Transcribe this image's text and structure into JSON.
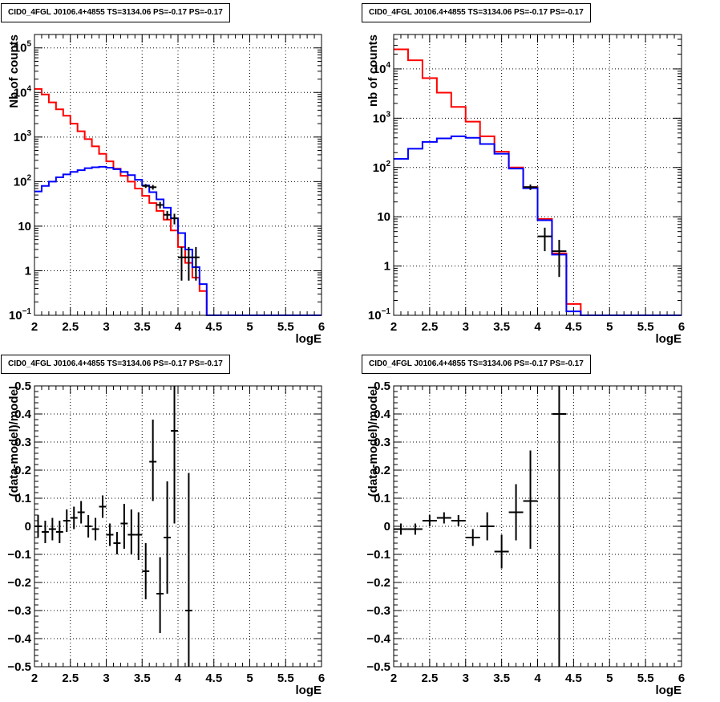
{
  "chart_data": [
    {
      "type": "line",
      "title": "CID0_4FGL J0106.4+4855 TS=3134.06 PS=-0.17 PS=-0.17",
      "xlabel": "logE",
      "ylabel": "Nb of counts",
      "xlim": [
        2,
        6
      ],
      "ylim": [
        0.1,
        200000
      ],
      "yscale": "log",
      "grid": true,
      "xticks": [
        "2",
        "2.5",
        "3",
        "3.5",
        "4",
        "4.5",
        "5",
        "5.5",
        "6"
      ],
      "yticks": [
        {
          "v": 0.1,
          "label": "10",
          "exp": "−1"
        },
        {
          "v": 1,
          "label": "1",
          "exp": ""
        },
        {
          "v": 10,
          "label": "10",
          "exp": ""
        },
        {
          "v": 100,
          "label": "10",
          "exp": "2"
        },
        {
          "v": 1000,
          "label": "10",
          "exp": "3"
        },
        {
          "v": 10000,
          "label": "10",
          "exp": "4"
        },
        {
          "v": 100000,
          "label": "10",
          "exp": "5"
        }
      ],
      "bin_edges": [
        2.0,
        2.1,
        2.2,
        2.3,
        2.4,
        2.5,
        2.6,
        2.7,
        2.8,
        2.9,
        3.0,
        3.1,
        3.2,
        3.3,
        3.4,
        3.5,
        3.6,
        3.7,
        3.8,
        3.9,
        4.0,
        4.1,
        4.2,
        4.3,
        4.4,
        4.5,
        4.6,
        4.7,
        4.8,
        4.9,
        5.0,
        5.1,
        5.2,
        5.3,
        5.4,
        5.5,
        5.6,
        5.7,
        5.8,
        5.9,
        6.0
      ],
      "series": [
        {
          "color": "#ff0000",
          "kind": "step",
          "values": [
            12000,
            9000,
            6000,
            4200,
            3000,
            2000,
            1350,
            900,
            620,
            420,
            285,
            195,
            135,
            100,
            70,
            48,
            33,
            22,
            14,
            8,
            3.4,
            1.5,
            0.7,
            0.35,
            0.1,
            0.1,
            0.1,
            0.1,
            0.1,
            0.1,
            0.1,
            0.1,
            0.1,
            0.1,
            0.1,
            0.1,
            0.1,
            0.1,
            0.1,
            0.1
          ]
        },
        {
          "color": "#0000ff",
          "kind": "step",
          "values": [
            60,
            80,
            100,
            125,
            145,
            165,
            180,
            200,
            210,
            215,
            205,
            190,
            165,
            140,
            110,
            82,
            58,
            40,
            26,
            15,
            7,
            3,
            1.2,
            0.5,
            0.1,
            0.1,
            0.1,
            0.1,
            0.1,
            0.1,
            0.1,
            0.1,
            0.1,
            0.1,
            0.1,
            0.1,
            0.1,
            0.1,
            0.1,
            0.1
          ]
        },
        {
          "color": "#000000",
          "kind": "points",
          "points": [
            {
              "x": 3.55,
              "y": 80,
              "xerr": 0.05,
              "ylo": 72,
              "yhi": 88
            },
            {
              "x": 3.65,
              "y": 75,
              "xerr": 0.05,
              "ylo": 66,
              "yhi": 84
            },
            {
              "x": 3.75,
              "y": 30,
              "xerr": 0.05,
              "ylo": 25,
              "yhi": 35
            },
            {
              "x": 3.85,
              "y": 18,
              "xerr": 0.05,
              "ylo": 14,
              "yhi": 22
            },
            {
              "x": 3.95,
              "y": 15,
              "xerr": 0.05,
              "ylo": 11,
              "yhi": 19
            },
            {
              "x": 4.05,
              "y": 2,
              "xerr": 0.05,
              "ylo": 0.6,
              "yhi": 3.4
            },
            {
              "x": 4.15,
              "y": 2,
              "xerr": 0.05,
              "ylo": 0.6,
              "yhi": 3.4
            },
            {
              "x": 4.25,
              "y": 2,
              "xerr": 0.05,
              "ylo": 0.6,
              "yhi": 3.4
            }
          ]
        }
      ]
    },
    {
      "type": "line",
      "title": "CID0_4FGL J0106.4+4855 TS=3134.06 PS=-0.17 PS=-0.17",
      "xlabel": "logE",
      "ylabel": "nb of counts",
      "xlim": [
        2,
        6
      ],
      "ylim": [
        0.1,
        50000
      ],
      "yscale": "log",
      "grid": true,
      "xticks": [
        "2",
        "2.5",
        "3",
        "3.5",
        "4",
        "4.5",
        "5",
        "5.5",
        "6"
      ],
      "yticks": [
        {
          "v": 0.1,
          "label": "10",
          "exp": "−1"
        },
        {
          "v": 1,
          "label": "1",
          "exp": ""
        },
        {
          "v": 10,
          "label": "10",
          "exp": ""
        },
        {
          "v": 100,
          "label": "10",
          "exp": "2"
        },
        {
          "v": 1000,
          "label": "10",
          "exp": "3"
        },
        {
          "v": 10000,
          "label": "10",
          "exp": "4"
        }
      ],
      "bin_edges": [
        2.0,
        2.2,
        2.4,
        2.6,
        2.8,
        3.0,
        3.2,
        3.4,
        3.6,
        3.8,
        4.0,
        4.2,
        4.4,
        4.6,
        4.8,
        5.0,
        5.2,
        5.4,
        5.6,
        5.8,
        6.0
      ],
      "series": [
        {
          "color": "#ff0000",
          "kind": "step",
          "values": [
            25000,
            15000,
            6500,
            3300,
            1700,
            850,
            430,
            210,
            100,
            40,
            9,
            1.8,
            0.17,
            0.1,
            0.1,
            0.1,
            0.1,
            0.1,
            0.1,
            0.1
          ]
        },
        {
          "color": "#0000ff",
          "kind": "step",
          "values": [
            150,
            240,
            330,
            390,
            430,
            400,
            300,
            190,
            95,
            38,
            8.5,
            1.7,
            0.12,
            0.1,
            0.1,
            0.1,
            0.1,
            0.1,
            0.1,
            0.1
          ]
        },
        {
          "color": "#000000",
          "kind": "points",
          "points": [
            {
              "x": 3.9,
              "y": 40,
              "xerr": 0.1,
              "ylo": 35,
              "yhi": 45
            },
            {
              "x": 4.1,
              "y": 4,
              "xerr": 0.1,
              "ylo": 2,
              "yhi": 6
            },
            {
              "x": 4.3,
              "y": 2,
              "xerr": 0.1,
              "ylo": 0.6,
              "yhi": 3.4
            }
          ]
        }
      ]
    },
    {
      "type": "scatter",
      "title": "CID0_4FGL J0106.4+4855 TS=3134.06 PS=-0.17 PS=-0.17",
      "xlabel": "logE",
      "ylabel": "(data-model)/model",
      "xlim": [
        2,
        6
      ],
      "ylim": [
        -0.5,
        0.5
      ],
      "yscale": "linear",
      "grid": true,
      "xticks": [
        "2",
        "2.5",
        "3",
        "3.5",
        "4",
        "4.5",
        "5",
        "5.5",
        "6"
      ],
      "yticks": [
        {
          "v": -0.5,
          "label": "−0.5"
        },
        {
          "v": -0.4,
          "label": "−0.4"
        },
        {
          "v": -0.3,
          "label": "−0.3"
        },
        {
          "v": -0.2,
          "label": "−0.2"
        },
        {
          "v": -0.1,
          "label": "−0.1"
        },
        {
          "v": 0,
          "label": "0"
        },
        {
          "v": 0.1,
          "label": "0.1"
        },
        {
          "v": 0.2,
          "label": "0.2"
        },
        {
          "v": 0.3,
          "label": "0.3"
        },
        {
          "v": 0.4,
          "label": "0.4"
        },
        {
          "v": 0.5,
          "label": "0.5"
        }
      ],
      "series": [
        {
          "color": "#000000",
          "kind": "points",
          "points": [
            {
              "x": 2.05,
              "y": 0.0,
              "xerr": 0.05,
              "ylo": -0.04,
              "yhi": 0.04
            },
            {
              "x": 2.15,
              "y": -0.02,
              "xerr": 0.05,
              "ylo": -0.06,
              "yhi": 0.02
            },
            {
              "x": 2.25,
              "y": -0.01,
              "xerr": 0.05,
              "ylo": -0.05,
              "yhi": 0.03
            },
            {
              "x": 2.35,
              "y": -0.02,
              "xerr": 0.05,
              "ylo": -0.06,
              "yhi": 0.02
            },
            {
              "x": 2.45,
              "y": 0.02,
              "xerr": 0.05,
              "ylo": -0.02,
              "yhi": 0.06
            },
            {
              "x": 2.55,
              "y": 0.03,
              "xerr": 0.05,
              "ylo": -0.01,
              "yhi": 0.07
            },
            {
              "x": 2.65,
              "y": 0.05,
              "xerr": 0.05,
              "ylo": 0.01,
              "yhi": 0.09
            },
            {
              "x": 2.75,
              "y": 0.0,
              "xerr": 0.05,
              "ylo": -0.04,
              "yhi": 0.04
            },
            {
              "x": 2.85,
              "y": -0.01,
              "xerr": 0.05,
              "ylo": -0.05,
              "yhi": 0.03
            },
            {
              "x": 2.95,
              "y": 0.07,
              "xerr": 0.05,
              "ylo": 0.03,
              "yhi": 0.11
            },
            {
              "x": 3.05,
              "y": -0.03,
              "xerr": 0.05,
              "ylo": -0.07,
              "yhi": 0.01
            },
            {
              "x": 3.15,
              "y": -0.06,
              "xerr": 0.05,
              "ylo": -0.1,
              "yhi": -0.02
            },
            {
              "x": 3.25,
              "y": 0.01,
              "xerr": 0.05,
              "ylo": -0.08,
              "yhi": 0.08
            },
            {
              "x": 3.35,
              "y": -0.03,
              "xerr": 0.05,
              "ylo": -0.1,
              "yhi": 0.06
            },
            {
              "x": 3.45,
              "y": -0.03,
              "xerr": 0.05,
              "ylo": -0.12,
              "yhi": 0.05
            },
            {
              "x": 3.55,
              "y": -0.16,
              "xerr": 0.05,
              "ylo": -0.26,
              "yhi": -0.06
            },
            {
              "x": 3.65,
              "y": 0.23,
              "xerr": 0.05,
              "ylo": 0.09,
              "yhi": 0.38
            },
            {
              "x": 3.75,
              "y": -0.24,
              "xerr": 0.05,
              "ylo": -0.38,
              "yhi": -0.11
            },
            {
              "x": 3.85,
              "y": -0.04,
              "xerr": 0.05,
              "ylo": -0.24,
              "yhi": 0.16
            },
            {
              "x": 3.95,
              "y": 0.34,
              "xerr": 0.05,
              "ylo": 0.01,
              "yhi": 0.5
            },
            {
              "x": 4.15,
              "y": -0.3,
              "xerr": 0.05,
              "ylo": -0.5,
              "yhi": 0.19
            }
          ]
        }
      ]
    },
    {
      "type": "scatter",
      "title": "CID0_4FGL J0106.4+4855 TS=3134.06 PS=-0.17 PS=-0.17",
      "xlabel": "logE",
      "ylabel": "(data-model)/model",
      "xlim": [
        2,
        6
      ],
      "ylim": [
        -0.5,
        0.5
      ],
      "yscale": "linear",
      "grid": true,
      "xticks": [
        "2",
        "2.5",
        "3",
        "3.5",
        "4",
        "4.5",
        "5",
        "5.5",
        "6"
      ],
      "yticks": [
        {
          "v": -0.5,
          "label": "−0.5"
        },
        {
          "v": -0.4,
          "label": "−0.4"
        },
        {
          "v": -0.3,
          "label": "−0.3"
        },
        {
          "v": -0.2,
          "label": "−0.2"
        },
        {
          "v": -0.1,
          "label": "−0.1"
        },
        {
          "v": 0,
          "label": "0"
        },
        {
          "v": 0.1,
          "label": "0.1"
        },
        {
          "v": 0.2,
          "label": "0.2"
        },
        {
          "v": 0.3,
          "label": "0.3"
        },
        {
          "v": 0.4,
          "label": "0.4"
        },
        {
          "v": 0.5,
          "label": "0.5"
        }
      ],
      "series": [
        {
          "color": "#000000",
          "kind": "points",
          "points": [
            {
              "x": 2.1,
              "y": -0.01,
              "xerr": 0.1,
              "ylo": -0.03,
              "yhi": 0.01
            },
            {
              "x": 2.3,
              "y": -0.01,
              "xerr": 0.1,
              "ylo": -0.03,
              "yhi": 0.01
            },
            {
              "x": 2.5,
              "y": 0.02,
              "xerr": 0.1,
              "ylo": 0.0,
              "yhi": 0.04
            },
            {
              "x": 2.7,
              "y": 0.03,
              "xerr": 0.1,
              "ylo": 0.01,
              "yhi": 0.05
            },
            {
              "x": 2.9,
              "y": 0.02,
              "xerr": 0.1,
              "ylo": 0.0,
              "yhi": 0.04
            },
            {
              "x": 3.1,
              "y": -0.04,
              "xerr": 0.1,
              "ylo": -0.07,
              "yhi": -0.01
            },
            {
              "x": 3.3,
              "y": 0.0,
              "xerr": 0.1,
              "ylo": -0.05,
              "yhi": 0.05
            },
            {
              "x": 3.5,
              "y": -0.09,
              "xerr": 0.1,
              "ylo": -0.15,
              "yhi": -0.03
            },
            {
              "x": 3.7,
              "y": 0.05,
              "xerr": 0.1,
              "ylo": -0.05,
              "yhi": 0.15
            },
            {
              "x": 3.9,
              "y": 0.09,
              "xerr": 0.1,
              "ylo": -0.08,
              "yhi": 0.27
            },
            {
              "x": 4.3,
              "y": 0.4,
              "xerr": 0.1,
              "ylo": -0.5,
              "yhi": 0.5
            }
          ]
        }
      ]
    }
  ]
}
